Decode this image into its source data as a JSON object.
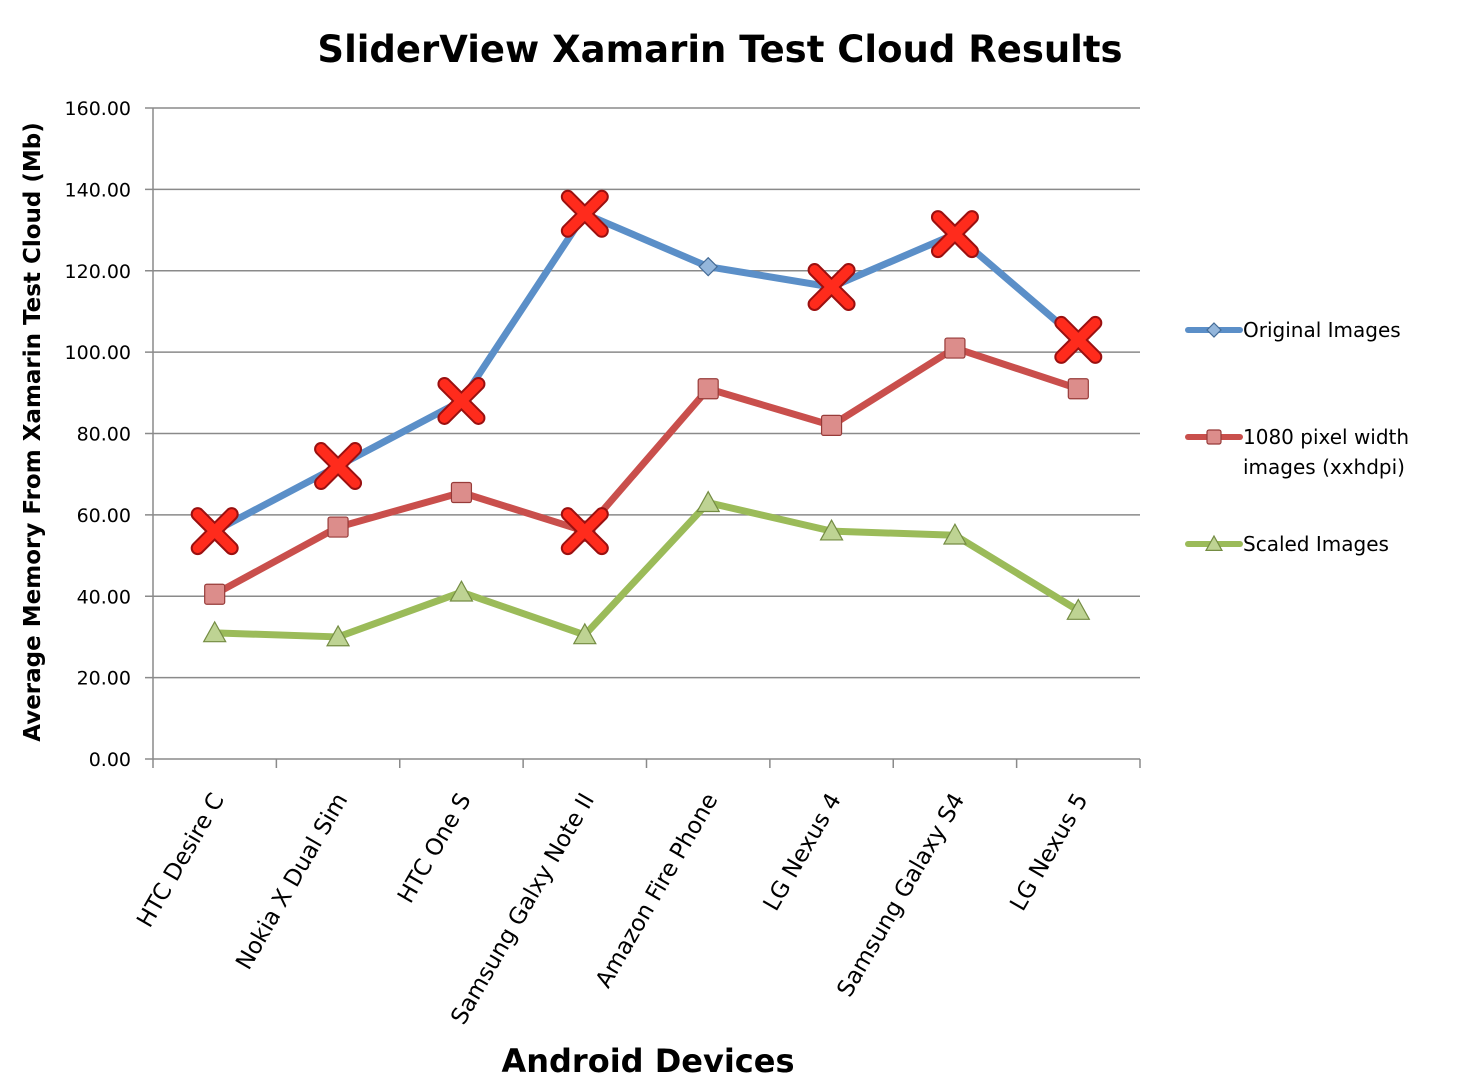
{
  "chart_data": {
    "type": "line",
    "title": "SliderView Xamarin Test Cloud Results",
    "xlabel": "Android Devices",
    "ylabel": "Average Memory From Xamarin Test Cloud (Mb)",
    "ylim": [
      0,
      160
    ],
    "yticks": [
      "0.00",
      "20.00",
      "40.00",
      "60.00",
      "80.00",
      "100.00",
      "120.00",
      "140.00",
      "160.00"
    ],
    "grid": true,
    "legend": "right",
    "categories": [
      "HTC Desire C",
      "Nokia X Dual Sim",
      "HTC One S",
      "Samsung Galxy Note II",
      "Amazon Fire Phone",
      "LG Nexus 4",
      "Samsung Galaxy S4",
      "LG Nexus 5"
    ],
    "series": [
      {
        "name": "Original Images",
        "legend_lines": [
          "Original Images"
        ],
        "color": "#5b8fc8",
        "marker": "diamond",
        "values": [
          56,
          72,
          88,
          134,
          121,
          116,
          129,
          103
        ]
      },
      {
        "name": "1080 pixel width images (xxhdpi)",
        "legend_lines": [
          "1080 pixel width",
          "images (xxhdpi)"
        ],
        "color": "#c94f4c",
        "marker": "square",
        "values": [
          40.5,
          57,
          65.5,
          56,
          91,
          82,
          101,
          91
        ]
      },
      {
        "name": "Scaled Images",
        "legend_lines": [
          "Scaled Images"
        ],
        "color": "#9bbb59",
        "marker": "triangle",
        "values": [
          31,
          30,
          41,
          30.5,
          63,
          56,
          55,
          36.5
        ]
      }
    ],
    "annotations": {
      "marker": "red-x-icon",
      "color": "#ff2b1c",
      "points": [
        {
          "category": "HTC Desire C",
          "value": 56
        },
        {
          "category": "Nokia X Dual Sim",
          "value": 72
        },
        {
          "category": "HTC One S",
          "value": 88
        },
        {
          "category": "Samsung Galxy Note II",
          "value": 134
        },
        {
          "category": "Samsung Galxy Note II",
          "value": 56
        },
        {
          "category": "LG Nexus 4",
          "value": 116
        },
        {
          "category": "Samsung Galaxy S4",
          "value": 129
        },
        {
          "category": "LG Nexus 5",
          "value": 103
        }
      ]
    }
  }
}
